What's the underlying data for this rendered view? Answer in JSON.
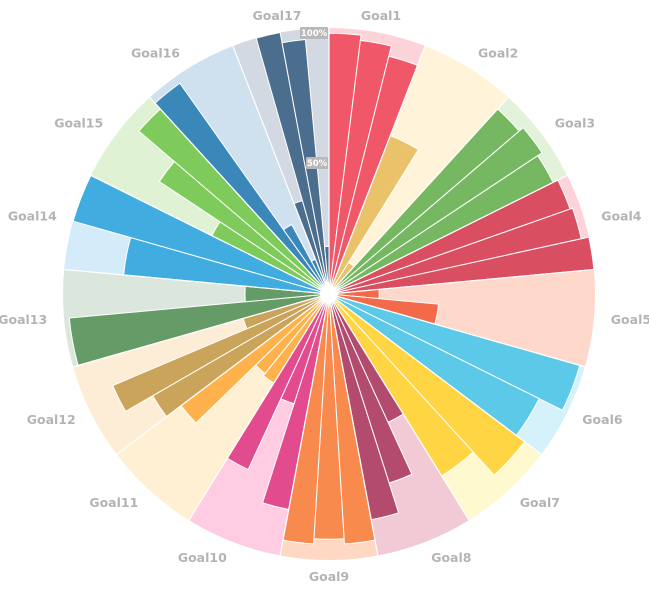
{
  "chart_data": {
    "type": "radial-bar",
    "scale_labels": [
      "100%",
      "50%"
    ],
    "scale_values": [
      100,
      50
    ],
    "goals": [
      {
        "name": "Goal1",
        "color": "#f0586a",
        "bg": "#fbd3d9",
        "values": [
          98,
          96,
          92
        ]
      },
      {
        "name": "Goal2",
        "color": "#eac269",
        "bg": "#fff4d9",
        "values": [
          63,
          12
        ]
      },
      {
        "name": "Goal3",
        "color": "#76b862",
        "bg": "#e3f2da",
        "values": [
          94,
          96,
          94
        ]
      },
      {
        "name": "Goal4",
        "color": "#d94e60",
        "bg": "#fbd3d9",
        "values": [
          96,
          97,
          100
        ]
      },
      {
        "name": "Goal5",
        "color": "#f26a4a",
        "bg": "#ffd8cc",
        "values": [
          17,
          40
        ]
      },
      {
        "name": "Goal6",
        "color": "#5cc9e8",
        "bg": "#d5f2fa",
        "values": [
          98,
          88
        ]
      },
      {
        "name": "Goal7",
        "color": "#ffd543",
        "bg": "#fff9cf",
        "values": [
          92,
          80
        ]
      },
      {
        "name": "Goal8",
        "color": "#b34b6e",
        "bg": "#f2cad6",
        "values": [
          52,
          74,
          86
        ]
      },
      {
        "name": "Goal9",
        "color": "#f98a4d",
        "bg": "#ffd8c4",
        "values": [
          94,
          92,
          94
        ]
      },
      {
        "name": "Goal10",
        "color": "#e34b8f",
        "bg": "#ffcce2",
        "values": [
          82,
          42,
          72
        ]
      },
      {
        "name": "Goal11",
        "color": "#ffb14b",
        "bg": "#fff0d3",
        "values": [
          38,
          37,
          69
        ]
      },
      {
        "name": "Goal12",
        "color": "#cba45c",
        "bg": "#fdecd6",
        "values": [
          76,
          88,
          32
        ]
      },
      {
        "name": "Goal13",
        "color": "#649b66",
        "bg": "#dbe7dc",
        "values": [
          98,
          30
        ]
      },
      {
        "name": "Goal14",
        "color": "#41ace0",
        "bg": "#d4ecfa",
        "values": [
          77,
          100
        ]
      },
      {
        "name": "Goal15",
        "color": "#7ecb5b",
        "bg": "#dff3d4",
        "values": [
          48,
          76,
          94
        ]
      },
      {
        "name": "Goal16",
        "color": "#3a88b9",
        "bg": "#cfe0ef",
        "values": [
          97,
          28,
          12
        ]
      },
      {
        "name": "Goal17",
        "color": "#4b6e8e",
        "bg": "#d2d9e2",
        "values": [
          35,
          100,
          96,
          16
        ]
      }
    ]
  }
}
